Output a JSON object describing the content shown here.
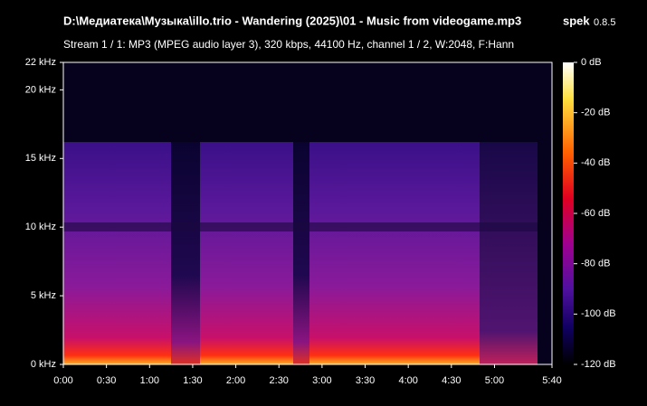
{
  "chart_data": {
    "type": "spectrogram",
    "title": "D:\\Медиатека\\Музыка\\illo.trio - Wandering (2025)\\01 - Music from videogame.mp3",
    "app_name": "spek",
    "app_version": "0.8.5",
    "subtitle": "Stream 1 / 1: MP3 (MPEG audio layer 3), 320 kbps, 44100 Hz, channel 1 / 2, W:2048, F:Hann",
    "xlim": [
      0,
      340
    ],
    "xticks": [
      {
        "value": 0,
        "label": "0:00"
      },
      {
        "value": 30,
        "label": "0:30"
      },
      {
        "value": 60,
        "label": "1:00"
      },
      {
        "value": 90,
        "label": "1:30"
      },
      {
        "value": 120,
        "label": "2:00"
      },
      {
        "value": 150,
        "label": "2:30"
      },
      {
        "value": 180,
        "label": "3:00"
      },
      {
        "value": 210,
        "label": "3:30"
      },
      {
        "value": 240,
        "label": "4:00"
      },
      {
        "value": 270,
        "label": "4:30"
      },
      {
        "value": 300,
        "label": "5:00"
      },
      {
        "value": 340,
        "label": "5:40"
      }
    ],
    "ylim": [
      0,
      22
    ],
    "yticks": [
      {
        "value": 0,
        "label": "0 kHz"
      },
      {
        "value": 5,
        "label": "5 kHz"
      },
      {
        "value": 10,
        "label": "10 kHz"
      },
      {
        "value": 15,
        "label": "15 kHz"
      },
      {
        "value": 20,
        "label": "20 kHz"
      },
      {
        "value": 22,
        "label": "22 kHz"
      }
    ],
    "clim": [
      -120,
      0
    ],
    "cticks": [
      {
        "value": 0,
        "label": "0 dB"
      },
      {
        "value": -20,
        "label": "-20 dB"
      },
      {
        "value": -40,
        "label": "-40 dB"
      },
      {
        "value": -60,
        "label": "-60 dB"
      },
      {
        "value": -80,
        "label": "-80 dB"
      },
      {
        "value": -100,
        "label": "-100 dB"
      },
      {
        "value": -120,
        "label": "-120 dB"
      }
    ]
  }
}
